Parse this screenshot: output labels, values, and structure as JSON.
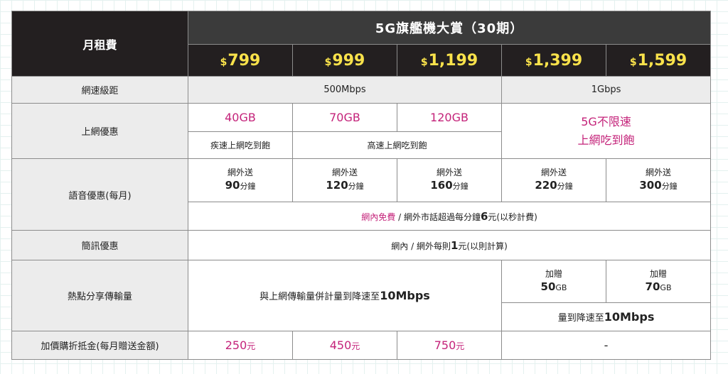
{
  "header": {
    "monthly_fee_label": "月租費",
    "plan_title": "5G旗艦機大賞（30期）",
    "currency": "$",
    "prices": [
      "799",
      "999",
      "1,199",
      "1,399",
      "1,599"
    ]
  },
  "rows": {
    "speed": {
      "label": "網速級距",
      "tier1": "500Mbps",
      "tier2": "1Gbps"
    },
    "data": {
      "label": "上網優惠",
      "values": [
        "40GB",
        "70GB",
        "120GB"
      ],
      "unlimited_line1": "5G不限速",
      "unlimited_line2": "上網吃到飽",
      "sub1": "疾速上網吃到飽",
      "sub2": "高速上網吃到飽"
    },
    "voice": {
      "label": "語音優惠(每月)",
      "offnet_label": "網外送",
      "minutes": [
        "90",
        "120",
        "160",
        "220",
        "300"
      ],
      "unit": "分鐘",
      "note_free": "網內免費",
      "note_sep": " / 網外市話超過每分鐘",
      "note_num": "6",
      "note_rest": "元(以秒計費)"
    },
    "sms": {
      "label": "簡訊優惠",
      "text_pre": "網內 / 網外每則",
      "text_num": "1",
      "text_post": "元(以則計算)"
    },
    "hotspot": {
      "label": "熱點分享傳輸量",
      "text_pre": "與上網傳輸量併計量到降速至",
      "text_speed": "10Mbps",
      "gift_label": "加贈",
      "gifts": [
        "50",
        "70"
      ],
      "gift_unit": "GB",
      "limit_pre": "量到降速至",
      "limit_speed": "10Mbps"
    },
    "credit": {
      "label": "加價購折抵金(每月贈送金額)",
      "values": [
        "250",
        "450",
        "750"
      ],
      "unit": "元",
      "none": "-"
    }
  }
}
